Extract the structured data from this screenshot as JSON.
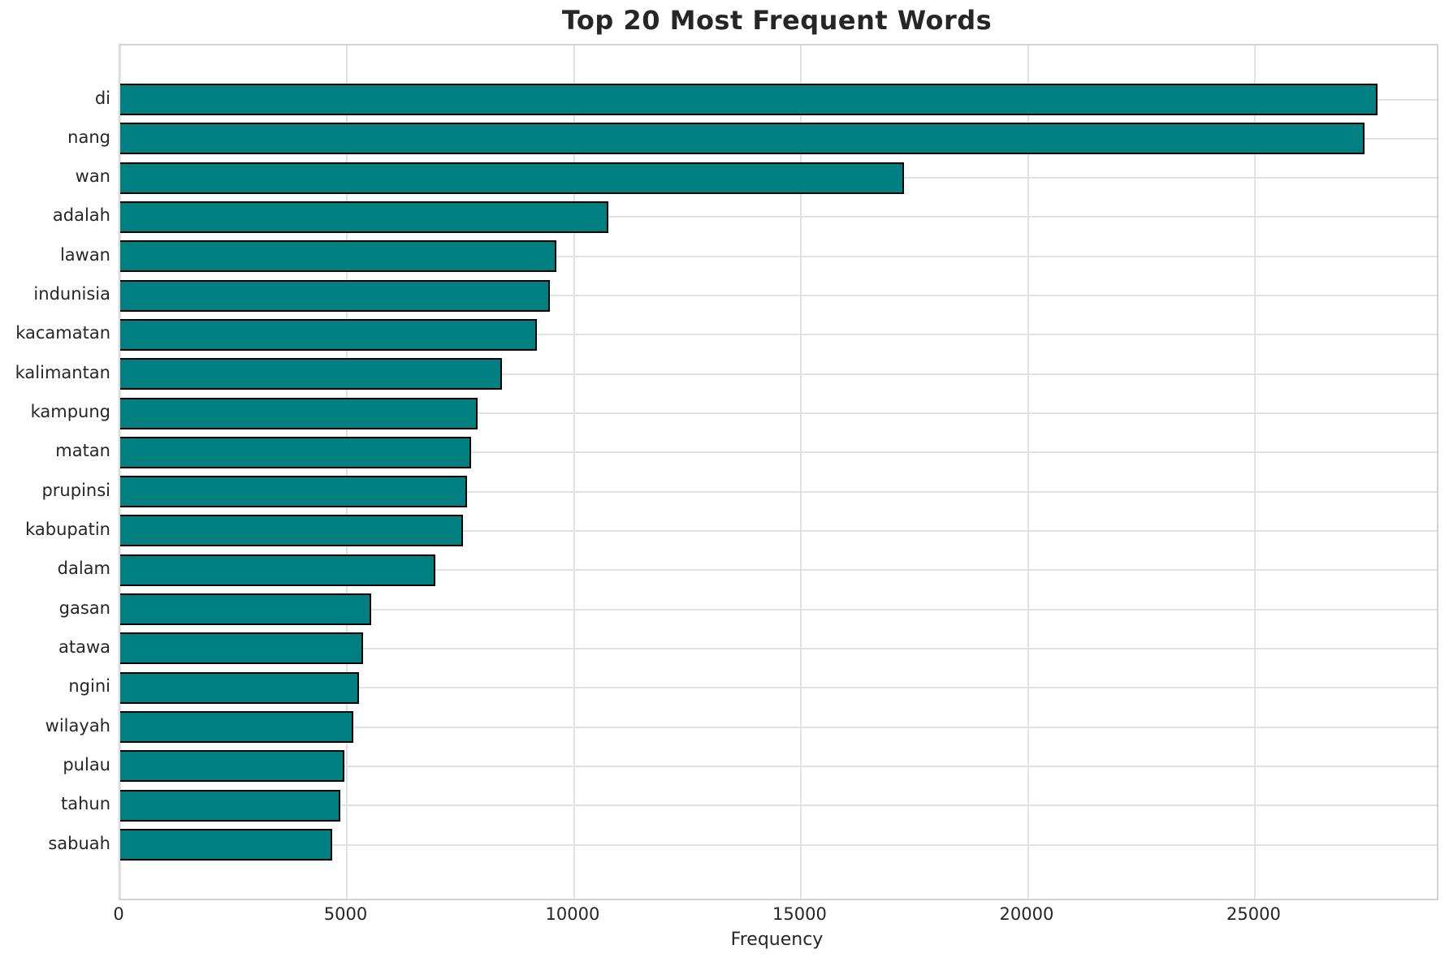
{
  "chart_data": {
    "type": "bar",
    "orientation": "horizontal",
    "title": "Top 20 Most Frequent Words",
    "xlabel": "Frequency",
    "ylabel": "",
    "categories": [
      "di",
      "nang",
      "wan",
      "adalah",
      "lawan",
      "indunisia",
      "kacamatan",
      "kalimantan",
      "kampung",
      "matan",
      "prupinsi",
      "kabupatin",
      "dalam",
      "gasan",
      "atawa",
      "ngini",
      "wilayah",
      "pulau",
      "tahun",
      "sabuah"
    ],
    "values": [
      27650,
      27380,
      17230,
      10710,
      9570,
      9420,
      9140,
      8380,
      7830,
      7700,
      7600,
      7520,
      6900,
      5490,
      5320,
      5220,
      5090,
      4900,
      4810,
      4630
    ],
    "x_ticks": [
      0,
      5000,
      10000,
      15000,
      20000,
      25000
    ],
    "xlim": [
      0,
      29000
    ],
    "grid": true,
    "legend": "none",
    "bar_color": "#008080",
    "bar_edge_color": "#000000",
    "grid_color": "#e2e2e2",
    "spine_color": "#d4d4d4",
    "text_color": "#262626"
  }
}
